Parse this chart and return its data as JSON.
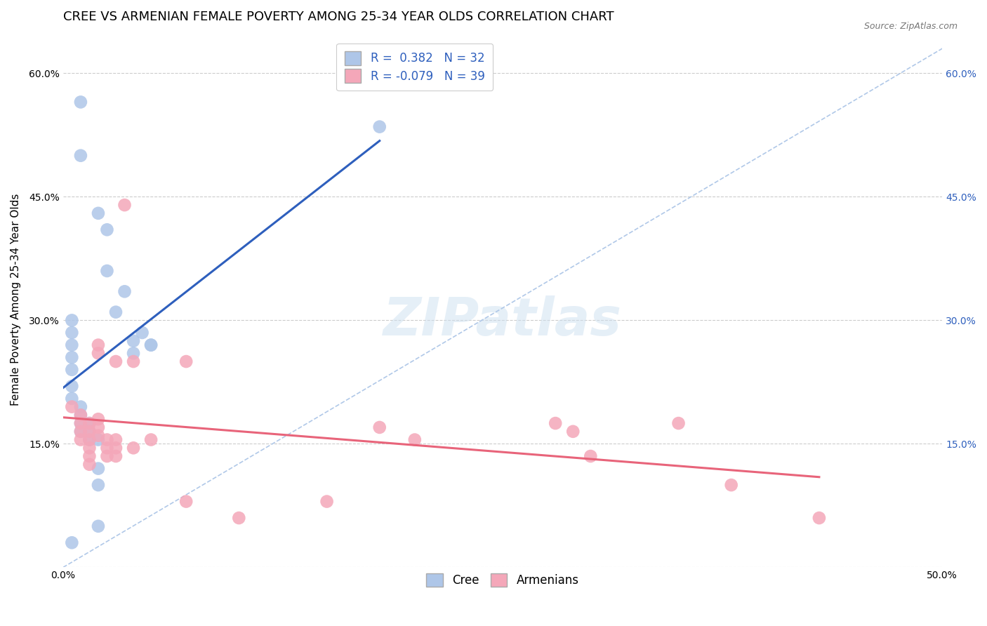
{
  "title": "CREE VS ARMENIAN FEMALE POVERTY AMONG 25-34 YEAR OLDS CORRELATION CHART",
  "source": "Source: ZipAtlas.com",
  "ylabel": "Female Poverty Among 25-34 Year Olds",
  "watermark": "ZIPatlas",
  "xlim": [
    0,
    0.5
  ],
  "ylim": [
    0,
    0.65
  ],
  "xtick_vals": [
    0.0,
    0.05,
    0.1,
    0.15,
    0.2,
    0.25,
    0.3,
    0.35,
    0.4,
    0.45,
    0.5
  ],
  "xtick_labels": [
    "0.0%",
    "",
    "",
    "",
    "",
    "",
    "",
    "",
    "",
    "",
    "50.0%"
  ],
  "ytick_vals": [
    0.0,
    0.15,
    0.3,
    0.45,
    0.6
  ],
  "ytick_labels_left": [
    "",
    "15.0%",
    "30.0%",
    "45.0%",
    "60.0%"
  ],
  "ytick_labels_right": [
    "",
    "15.0%",
    "30.0%",
    "45.0%",
    "60.0%"
  ],
  "cree_color": "#aec6e8",
  "armenian_color": "#f4a7b9",
  "cree_line_color": "#2e5fbd",
  "armenian_line_color": "#e8647a",
  "diagonal_color": "#b0c8e8",
  "legend_R_cree": "R =  0.382",
  "legend_N_cree": "N = 32",
  "legend_R_armenian": "R = -0.079",
  "legend_N_armenian": "N = 39",
  "cree_points": [
    [
      0.01,
      0.565
    ],
    [
      0.01,
      0.5
    ],
    [
      0.02,
      0.43
    ],
    [
      0.025,
      0.41
    ],
    [
      0.025,
      0.36
    ],
    [
      0.035,
      0.335
    ],
    [
      0.03,
      0.31
    ],
    [
      0.04,
      0.275
    ],
    [
      0.04,
      0.26
    ],
    [
      0.045,
      0.285
    ],
    [
      0.05,
      0.27
    ],
    [
      0.18,
      0.535
    ],
    [
      0.005,
      0.3
    ],
    [
      0.005,
      0.285
    ],
    [
      0.005,
      0.27
    ],
    [
      0.005,
      0.255
    ],
    [
      0.005,
      0.24
    ],
    [
      0.005,
      0.22
    ],
    [
      0.005,
      0.205
    ],
    [
      0.01,
      0.195
    ],
    [
      0.01,
      0.185
    ],
    [
      0.01,
      0.175
    ],
    [
      0.01,
      0.165
    ],
    [
      0.015,
      0.175
    ],
    [
      0.015,
      0.165
    ],
    [
      0.015,
      0.155
    ],
    [
      0.02,
      0.155
    ],
    [
      0.02,
      0.12
    ],
    [
      0.02,
      0.1
    ],
    [
      0.02,
      0.05
    ],
    [
      0.005,
      0.03
    ],
    [
      0.05,
      0.27
    ]
  ],
  "armenian_points": [
    [
      0.035,
      0.44
    ],
    [
      0.005,
      0.195
    ],
    [
      0.01,
      0.185
    ],
    [
      0.01,
      0.175
    ],
    [
      0.01,
      0.165
    ],
    [
      0.01,
      0.155
    ],
    [
      0.015,
      0.175
    ],
    [
      0.015,
      0.165
    ],
    [
      0.015,
      0.155
    ],
    [
      0.015,
      0.145
    ],
    [
      0.015,
      0.135
    ],
    [
      0.015,
      0.125
    ],
    [
      0.02,
      0.27
    ],
    [
      0.02,
      0.26
    ],
    [
      0.02,
      0.18
    ],
    [
      0.02,
      0.17
    ],
    [
      0.02,
      0.16
    ],
    [
      0.025,
      0.155
    ],
    [
      0.025,
      0.145
    ],
    [
      0.025,
      0.135
    ],
    [
      0.03,
      0.25
    ],
    [
      0.03,
      0.155
    ],
    [
      0.03,
      0.145
    ],
    [
      0.03,
      0.135
    ],
    [
      0.04,
      0.25
    ],
    [
      0.04,
      0.145
    ],
    [
      0.05,
      0.155
    ],
    [
      0.07,
      0.25
    ],
    [
      0.07,
      0.08
    ],
    [
      0.1,
      0.06
    ],
    [
      0.15,
      0.08
    ],
    [
      0.18,
      0.17
    ],
    [
      0.2,
      0.155
    ],
    [
      0.28,
      0.175
    ],
    [
      0.29,
      0.165
    ],
    [
      0.3,
      0.135
    ],
    [
      0.35,
      0.175
    ],
    [
      0.38,
      0.1
    ],
    [
      0.43,
      0.06
    ]
  ],
  "background_color": "#ffffff",
  "grid_color": "#cccccc",
  "title_fontsize": 13,
  "axis_fontsize": 11,
  "tick_fontsize": 10,
  "legend_fontsize": 12
}
